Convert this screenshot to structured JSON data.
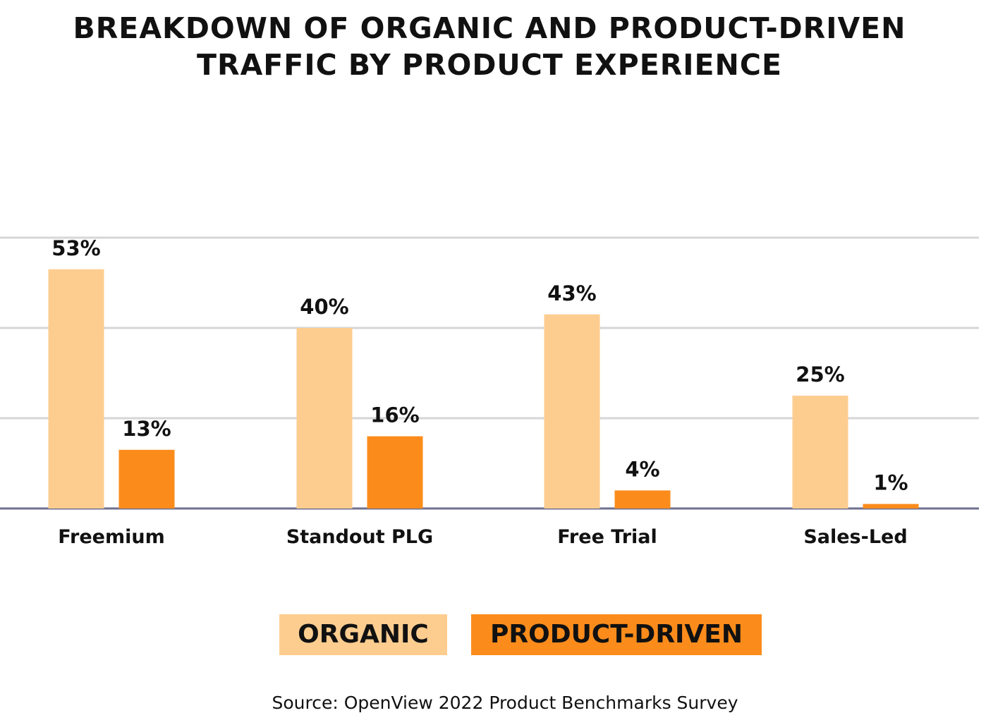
{
  "title": {
    "line1": "BREAKDOWN OF ORGANIC AND PRODUCT-DRIVEN",
    "line2": "TRAFFIC BY PRODUCT EXPERIENCE"
  },
  "chart_data": {
    "type": "bar",
    "title": "BREAKDOWN OF ORGANIC AND PRODUCT-DRIVEN TRAFFIC BY PRODUCT EXPERIENCE",
    "categories": [
      "Freemium",
      "Standout PLG",
      "Free Trial",
      "Sales-Led"
    ],
    "series": [
      {
        "name": "ORGANIC",
        "values": [
          53,
          40,
          43,
          25
        ],
        "labels": [
          "53%",
          "40%",
          "43%",
          "25%"
        ],
        "color": "#FDCD90"
      },
      {
        "name": "PRODUCT-DRIVEN",
        "values": [
          13,
          16,
          4,
          1
        ],
        "labels": [
          "13%",
          "16%",
          "4%",
          "1%"
        ],
        "color": "#FB8C1C"
      }
    ],
    "ylim": [
      0,
      60
    ],
    "grid": true,
    "legend": "bottom-center",
    "xlabel": "",
    "ylabel": ""
  },
  "colors": {
    "organic": "#FDCD90",
    "product_driven": "#FB8C1C",
    "grid": "#D6D6D6",
    "axis": "#6E7090"
  },
  "legend": {
    "organic_label": "ORGANIC",
    "product_label": "PRODUCT-DRIVEN"
  },
  "source": "Source: OpenView 2022 Product Benchmarks Survey"
}
